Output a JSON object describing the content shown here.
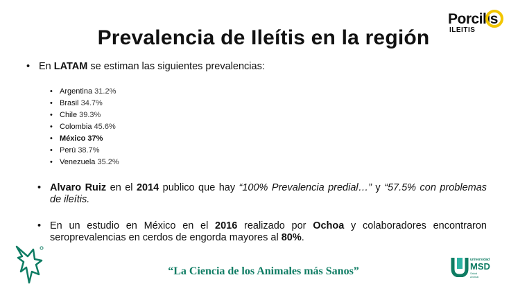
{
  "slide": {
    "title": "Prevalencia de Ileítis en la región",
    "logo_top": {
      "word": "Porcilis",
      "sub": "ILEITIS",
      "accent": "#f2c600"
    },
    "bullet1": {
      "pre": "En ",
      "bold": "LATAM",
      "post": " se estiman las siguientes prevalencias:"
    },
    "countries": [
      {
        "name": "Argentina",
        "value": "31.2%"
      },
      {
        "name": "Brasil",
        "value": "34.7%"
      },
      {
        "name": "Chile",
        "value": "39.3%"
      },
      {
        "name": "Colombia",
        "value": "45.6%"
      },
      {
        "name": "México",
        "value": "37%",
        "bold": true
      },
      {
        "name": "Perú",
        "value": "38.7%"
      },
      {
        "name": "Venezuela",
        "value": "35.2%"
      }
    ],
    "para2": {
      "author": "Alvaro Ruiz",
      "t1": " en el ",
      "year": "2014",
      "t2": " publico que hay ",
      "quote1": "“100% Prevalencia predial…”",
      "t3": "  y ",
      "quote2": "“57.5% con problemas de ileítis."
    },
    "para3": {
      "t1": "En un estudio en México en el ",
      "year": "2016",
      "t2": " realizado por ",
      "author": "Ochoa",
      "t3": " y colaboradores encontraron seroprevalencias en cerdos de engorda mayores al ",
      "pct": "80%",
      "t4": "."
    },
    "motto": "“La Ciencia de los Animales más Sanos”",
    "logo_bottom": {
      "t1": "universidad",
      "t2": "MSD",
      "t3": "Salud Animal",
      "color": "#0e7c63"
    },
    "bullet_char": "•"
  }
}
